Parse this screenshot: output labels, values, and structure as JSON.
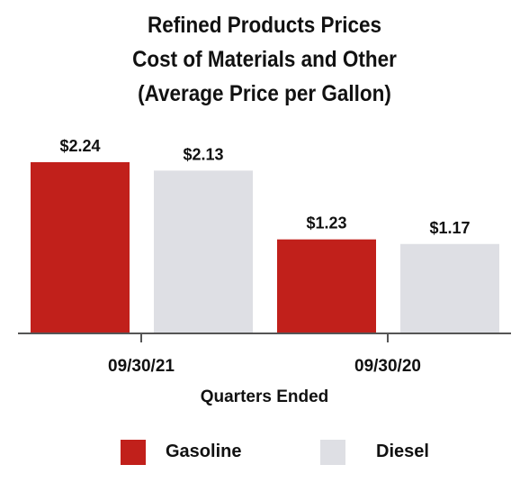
{
  "chart_data": {
    "type": "bar",
    "title_lines": [
      "Refined Products Prices",
      "Cost of Materials and Other",
      "(Average Price per Gallon)"
    ],
    "categories": [
      "09/30/21",
      "09/30/20"
    ],
    "xlabel": "Quarters Ended",
    "ylabel": "",
    "ylim": [
      0,
      2.4
    ],
    "grid": false,
    "legend_position": "bottom",
    "series": [
      {
        "name": "Gasoline",
        "values": [
          2.24,
          1.23
        ],
        "labels": [
          "$2.24",
          "$1.23"
        ],
        "color": "#C1201B"
      },
      {
        "name": "Diesel",
        "values": [
          2.13,
          1.17
        ],
        "labels": [
          "$2.13",
          "$1.17"
        ],
        "color": "#DEDFE4"
      }
    ]
  }
}
